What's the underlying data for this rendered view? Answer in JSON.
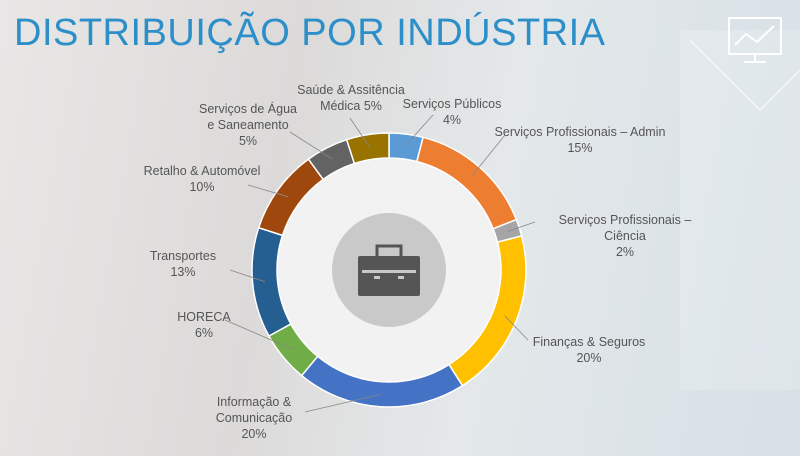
{
  "chart_data": {
    "type": "donut",
    "title": "DISTRIBUIÇÃO POR INDÚSTRIA",
    "categories": [
      "Serviços Públicos",
      "Serviços Profissionais – Admin",
      "Serviços Profissionais – Ciência",
      "Finanças & Seguros",
      "Informação &\nComunicação",
      "HORECA",
      "Transportes",
      "Retalho & Automóvel",
      "Serviços de Água\ne Saneamento",
      "Saúde & Assitência\nMédica"
    ],
    "values": [
      4,
      15,
      2,
      20,
      20,
      6,
      13,
      10,
      5,
      5
    ],
    "value_labels": [
      "4%",
      "15%",
      "2%",
      "20%",
      "20%",
      "6%",
      "13%",
      "10%",
      "5%",
      "5%"
    ],
    "colors": [
      "#5b9bd5",
      "#ed7d31",
      "#a5a5a5",
      "#ffc000",
      "#4472c4",
      "#70ad47",
      "#255e91",
      "#9e480e",
      "#636363",
      "#997300"
    ]
  }
}
